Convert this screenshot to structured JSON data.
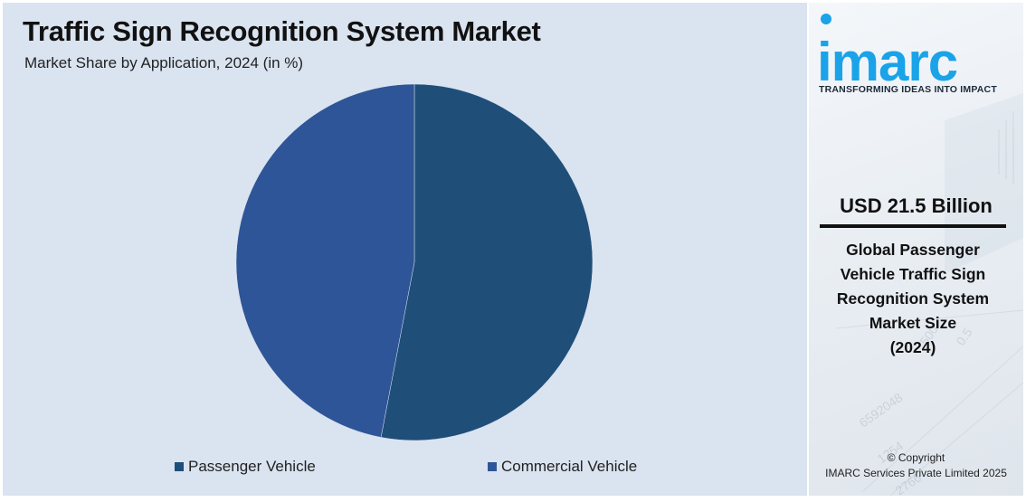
{
  "chart_data": {
    "type": "pie",
    "title": "Traffic Sign Recognition System Market",
    "subtitle": "Market Share by Application, 2024 (in %)",
    "series": [
      {
        "name": "Passenger Vehicle",
        "value": 53,
        "color": "#1f4e79"
      },
      {
        "name": "Commercial Vehicle",
        "value": 47,
        "color": "#2e5597"
      }
    ],
    "legend_position": "bottom"
  },
  "sidebar": {
    "logo_text": "imarc",
    "tagline": "TRANSFORMING IDEAS INTO IMPACT",
    "stat_value": "USD 21.5 Billion",
    "stat_desc_lines": [
      "Global Passenger",
      "Vehicle Traffic Sign",
      "Recognition System",
      "Market Size",
      "(2024)"
    ],
    "copyright_line1": "© Copyright",
    "copyright_line2": "IMARC Services Private Limited 2025",
    "accent_color": "#1aa3e8"
  }
}
